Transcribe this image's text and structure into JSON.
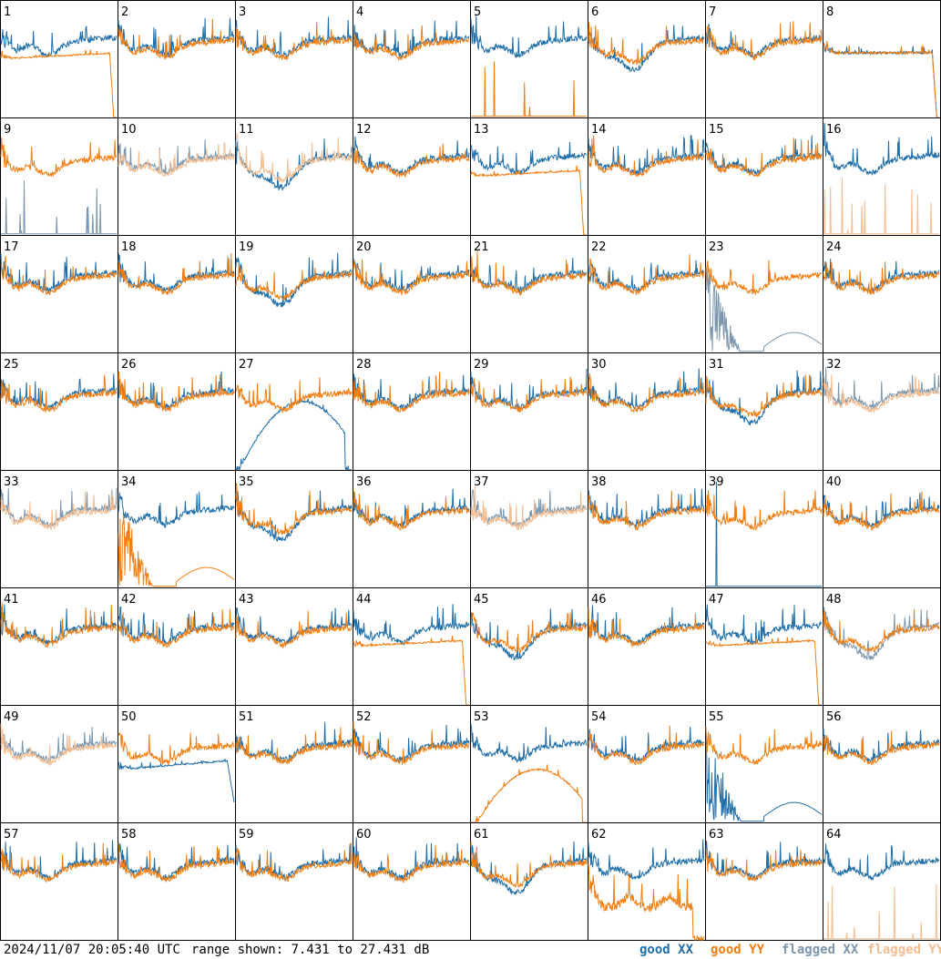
{
  "footer": {
    "timestamp": "2024/11/07 20:05:40 UTC",
    "range_text": "range shown: 7.431 to 27.431 dB",
    "legend": {
      "good_xx": "good XX",
      "good_yy": "good YY",
      "flagged_xx": "flagged XX",
      "flagged_yy": "flagged YY"
    }
  },
  "colors": {
    "good_xx": "#1f6ea8",
    "good_yy": "#f07e12",
    "flagged_xx": "#7b96ad",
    "flagged_yy": "#f4bd90",
    "panel_border": "#000000"
  },
  "chart_data": {
    "type": "line",
    "layout": "8x8 small multiples, one spectrum panel per antenna",
    "ylim": [
      7.431,
      27.431
    ],
    "yunit": "dB",
    "panels": [
      {
        "label": "1",
        "xx": "good",
        "yy": "good",
        "shape": "rolloff_yy"
      },
      {
        "label": "2",
        "xx": "good",
        "yy": "good",
        "shape": "normal"
      },
      {
        "label": "3",
        "xx": "good",
        "yy": "good",
        "shape": "normal"
      },
      {
        "label": "4",
        "xx": "good",
        "yy": "good",
        "shape": "normal"
      },
      {
        "label": "5",
        "xx": "good",
        "yy": "good",
        "shape": "yy_spikes_low"
      },
      {
        "label": "6",
        "xx": "good",
        "yy": "good",
        "shape": "bowl_split"
      },
      {
        "label": "7",
        "xx": "good",
        "yy": "good",
        "shape": "normal"
      },
      {
        "label": "8",
        "xx": "good",
        "yy": "good",
        "shape": "rolloff_both"
      },
      {
        "label": "9",
        "xx": "flagged",
        "yy": "good",
        "shape": "xx_spikes_low"
      },
      {
        "label": "10",
        "xx": "flagged",
        "yy": "flagged",
        "shape": "normal"
      },
      {
        "label": "11",
        "xx": "good",
        "yy": "flagged",
        "shape": "bowl_split"
      },
      {
        "label": "12",
        "xx": "good",
        "yy": "good",
        "shape": "normal"
      },
      {
        "label": "13",
        "xx": "good",
        "yy": "good",
        "shape": "rolloff_yy"
      },
      {
        "label": "14",
        "xx": "good",
        "yy": "good",
        "shape": "normal"
      },
      {
        "label": "15",
        "xx": "good",
        "yy": "good",
        "shape": "normal"
      },
      {
        "label": "16",
        "xx": "good",
        "yy": "flagged",
        "shape": "yy_spikes_low"
      },
      {
        "label": "17",
        "xx": "good",
        "yy": "good",
        "shape": "normal"
      },
      {
        "label": "18",
        "xx": "good",
        "yy": "good",
        "shape": "normal"
      },
      {
        "label": "19",
        "xx": "good",
        "yy": "good",
        "shape": "bowl_split"
      },
      {
        "label": "20",
        "xx": "good",
        "yy": "good",
        "shape": "normal"
      },
      {
        "label": "21",
        "xx": "good",
        "yy": "good",
        "shape": "normal"
      },
      {
        "label": "22",
        "xx": "good",
        "yy": "good",
        "shape": "normal"
      },
      {
        "label": "23",
        "xx": "flagged",
        "yy": "good",
        "shape": "xx_noise_low"
      },
      {
        "label": "24",
        "xx": "good",
        "yy": "good",
        "shape": "normal"
      },
      {
        "label": "25",
        "xx": "good",
        "yy": "good",
        "shape": "normal"
      },
      {
        "label": "26",
        "xx": "good",
        "yy": "good",
        "shape": "normal"
      },
      {
        "label": "27",
        "xx": "good",
        "yy": "good",
        "shape": "xx_dome"
      },
      {
        "label": "28",
        "xx": "good",
        "yy": "good",
        "shape": "normal"
      },
      {
        "label": "29",
        "xx": "good",
        "yy": "good",
        "shape": "normal"
      },
      {
        "label": "30",
        "xx": "good",
        "yy": "good",
        "shape": "normal"
      },
      {
        "label": "31",
        "xx": "good",
        "yy": "good",
        "shape": "bowl_split"
      },
      {
        "label": "32",
        "xx": "flagged",
        "yy": "flagged",
        "shape": "normal"
      },
      {
        "label": "33",
        "xx": "flagged",
        "yy": "flagged",
        "shape": "normal"
      },
      {
        "label": "34",
        "xx": "good",
        "yy": "good",
        "shape": "yy_noise_low"
      },
      {
        "label": "35",
        "xx": "good",
        "yy": "good",
        "shape": "bowl_split"
      },
      {
        "label": "36",
        "xx": "good",
        "yy": "good",
        "shape": "normal"
      },
      {
        "label": "37",
        "xx": "flagged",
        "yy": "flagged",
        "shape": "normal"
      },
      {
        "label": "38",
        "xx": "good",
        "yy": "good",
        "shape": "normal"
      },
      {
        "label": "39",
        "xx": "good",
        "yy": "good",
        "shape": "xx_spike"
      },
      {
        "label": "40",
        "xx": "good",
        "yy": "good",
        "shape": "normal"
      },
      {
        "label": "41",
        "xx": "good",
        "yy": "good",
        "shape": "normal"
      },
      {
        "label": "42",
        "xx": "good",
        "yy": "good",
        "shape": "normal"
      },
      {
        "label": "43",
        "xx": "good",
        "yy": "good",
        "shape": "normal"
      },
      {
        "label": "44",
        "xx": "good",
        "yy": "good",
        "shape": "rolloff_yy"
      },
      {
        "label": "45",
        "xx": "good",
        "yy": "good",
        "shape": "bowl_split"
      },
      {
        "label": "46",
        "xx": "good",
        "yy": "good",
        "shape": "normal"
      },
      {
        "label": "47",
        "xx": "good",
        "yy": "good",
        "shape": "rolloff_yy"
      },
      {
        "label": "48",
        "xx": "flagged",
        "yy": "good",
        "shape": "bowl_split"
      },
      {
        "label": "49",
        "xx": "flagged",
        "yy": "flagged",
        "shape": "normal"
      },
      {
        "label": "50",
        "xx": "good",
        "yy": "good",
        "shape": "rolloff_xx"
      },
      {
        "label": "51",
        "xx": "good",
        "yy": "good",
        "shape": "normal"
      },
      {
        "label": "52",
        "xx": "good",
        "yy": "good",
        "shape": "normal"
      },
      {
        "label": "53",
        "xx": "good",
        "yy": "good",
        "shape": "yy_dome"
      },
      {
        "label": "54",
        "xx": "good",
        "yy": "good",
        "shape": "normal"
      },
      {
        "label": "55",
        "xx": "good",
        "yy": "good",
        "shape": "xx_noise_low"
      },
      {
        "label": "56",
        "xx": "good",
        "yy": "good",
        "shape": "normal"
      },
      {
        "label": "57",
        "xx": "good",
        "yy": "good",
        "shape": "normal"
      },
      {
        "label": "58",
        "xx": "good",
        "yy": "good",
        "shape": "normal"
      },
      {
        "label": "59",
        "xx": "good",
        "yy": "good",
        "shape": "normal"
      },
      {
        "label": "60",
        "xx": "good",
        "yy": "good",
        "shape": "normal"
      },
      {
        "label": "61",
        "xx": "good",
        "yy": "good",
        "shape": "bowl_split"
      },
      {
        "label": "62",
        "xx": "good",
        "yy": "good",
        "shape": "yy_drop"
      },
      {
        "label": "63",
        "xx": "good",
        "yy": "good",
        "shape": "normal"
      },
      {
        "label": "64",
        "xx": "good",
        "yy": "flagged",
        "shape": "yy_spikes_low"
      }
    ]
  }
}
